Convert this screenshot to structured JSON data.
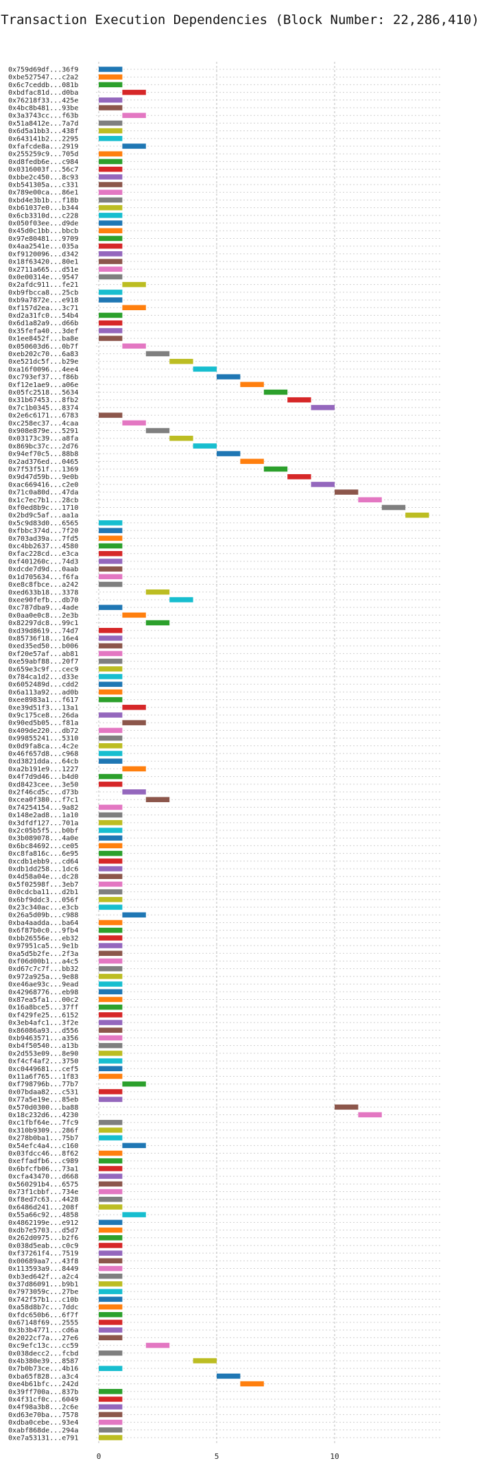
{
  "chart_data": {
    "type": "bar",
    "orientation": "horizontal-gantt",
    "title": "Transaction Execution Dependencies (Block Number: 22,286,410)",
    "xlabel": "",
    "ylabel": "",
    "xlim": [
      0,
      14.6
    ],
    "xticks": [
      0,
      5,
      10
    ],
    "grid": true,
    "colors": [
      "#1f77b4",
      "#ff7f0e",
      "#2ca02c",
      "#d62728",
      "#9467bd",
      "#8c564b",
      "#e377c2",
      "#7f7f7f",
      "#bcbd22",
      "#17becf"
    ],
    "tasks": [
      {
        "label": "0x759d69df...36f9",
        "start": 0,
        "end": 1
      },
      {
        "label": "0xbe527547...c2a2",
        "start": 0,
        "end": 1
      },
      {
        "label": "0x6c7ceddb...081b",
        "start": 0,
        "end": 1
      },
      {
        "label": "0xbdfac81d...d0ba",
        "start": 1,
        "end": 2
      },
      {
        "label": "0x76218f33...425e",
        "start": 0,
        "end": 1
      },
      {
        "label": "0x4bc8b481...93be",
        "start": 0,
        "end": 1
      },
      {
        "label": "0x3a3743cc...f63b",
        "start": 1,
        "end": 2
      },
      {
        "label": "0x51a8412e...7a7d",
        "start": 0,
        "end": 1
      },
      {
        "label": "0x6d5a1bb3...438f",
        "start": 0,
        "end": 1
      },
      {
        "label": "0x643141b2...2295",
        "start": 0,
        "end": 1
      },
      {
        "label": "0xfafcde8a...2919",
        "start": 1,
        "end": 2
      },
      {
        "label": "0x255259c9...705d",
        "start": 0,
        "end": 1
      },
      {
        "label": "0xd8fedb6e...c984",
        "start": 0,
        "end": 1
      },
      {
        "label": "0x0316003f...56c7",
        "start": 0,
        "end": 1
      },
      {
        "label": "0xbbe2c450...8c93",
        "start": 0,
        "end": 1
      },
      {
        "label": "0xb541305a...c331",
        "start": 0,
        "end": 1
      },
      {
        "label": "0x789e00ca...86e1",
        "start": 0,
        "end": 1
      },
      {
        "label": "0xbd4e3b1b...f18b",
        "start": 0,
        "end": 1
      },
      {
        "label": "0xb61037e0...b344",
        "start": 0,
        "end": 1
      },
      {
        "label": "0x6cb3310d...c228",
        "start": 0,
        "end": 1
      },
      {
        "label": "0x050f03ee...d9de",
        "start": 0,
        "end": 1
      },
      {
        "label": "0x45d0c1bb...bbcb",
        "start": 0,
        "end": 1
      },
      {
        "label": "0x97e80481...9709",
        "start": 0,
        "end": 1
      },
      {
        "label": "0x4aa2541e...035a",
        "start": 0,
        "end": 1
      },
      {
        "label": "0xf9120096...d342",
        "start": 0,
        "end": 1
      },
      {
        "label": "0x18f63420...80e1",
        "start": 0,
        "end": 1
      },
      {
        "label": "0x2711a665...d51e",
        "start": 0,
        "end": 1
      },
      {
        "label": "0x0e00314e...9547",
        "start": 0,
        "end": 1
      },
      {
        "label": "0x2afdc911...fe21",
        "start": 1,
        "end": 2
      },
      {
        "label": "0xb9fbcca8...25cb",
        "start": 0,
        "end": 1
      },
      {
        "label": "0xb9a7872e...e918",
        "start": 0,
        "end": 1
      },
      {
        "label": "0xf157d2ea...3c71",
        "start": 1,
        "end": 2
      },
      {
        "label": "0xd2a31fc0...54b4",
        "start": 0,
        "end": 1
      },
      {
        "label": "0x6d1a82a9...d66b",
        "start": 0,
        "end": 1
      },
      {
        "label": "0x35fefa40...3def",
        "start": 0,
        "end": 1
      },
      {
        "label": "0x1ee8452f...ba8e",
        "start": 0,
        "end": 1
      },
      {
        "label": "0x050603d6...0b7f",
        "start": 1,
        "end": 2
      },
      {
        "label": "0xeb202c70...6a83",
        "start": 2,
        "end": 3
      },
      {
        "label": "0xe521dc5f...b29e",
        "start": 3,
        "end": 4
      },
      {
        "label": "0xa16f0096...4ee4",
        "start": 4,
        "end": 5
      },
      {
        "label": "0xc793ef37...f86b",
        "start": 5,
        "end": 6
      },
      {
        "label": "0xf12e1ae9...a06e",
        "start": 6,
        "end": 7
      },
      {
        "label": "0x05fc2518...5634",
        "start": 7,
        "end": 8
      },
      {
        "label": "0x31b67453...8fb2",
        "start": 8,
        "end": 9
      },
      {
        "label": "0x7c1b0345...8374",
        "start": 9,
        "end": 10
      },
      {
        "label": "0x2e6c6171...6783",
        "start": 0,
        "end": 1
      },
      {
        "label": "0xc258ec37...4caa",
        "start": 1,
        "end": 2
      },
      {
        "label": "0x908e879e...5291",
        "start": 2,
        "end": 3
      },
      {
        "label": "0x03173c39...a8fa",
        "start": 3,
        "end": 4
      },
      {
        "label": "0x869bc37c...2d76",
        "start": 4,
        "end": 5
      },
      {
        "label": "0x94ef70c5...88b8",
        "start": 5,
        "end": 6
      },
      {
        "label": "0x2ad376ed...0465",
        "start": 6,
        "end": 7
      },
      {
        "label": "0x7f53f51f...1369",
        "start": 7,
        "end": 8
      },
      {
        "label": "0x9d47d59b...9e0b",
        "start": 8,
        "end": 9
      },
      {
        "label": "0xac669416...c2e0",
        "start": 9,
        "end": 10
      },
      {
        "label": "0x71c0a80d...47da",
        "start": 10,
        "end": 11
      },
      {
        "label": "0x1c7ec7b1...28cb",
        "start": 11,
        "end": 12
      },
      {
        "label": "0xf0ed8b9c...1710",
        "start": 12,
        "end": 13
      },
      {
        "label": "0x2bd9c5af...aa1a",
        "start": 13,
        "end": 14
      },
      {
        "label": "0x5c9d83d0...6565",
        "start": 0,
        "end": 1
      },
      {
        "label": "0xfbbc374d...7f20",
        "start": 0,
        "end": 1
      },
      {
        "label": "0x703ad39a...7fd5",
        "start": 0,
        "end": 1
      },
      {
        "label": "0xc4bb2637...4580",
        "start": 0,
        "end": 1
      },
      {
        "label": "0xfac228cd...e3ca",
        "start": 0,
        "end": 1
      },
      {
        "label": "0xf401260c...74d3",
        "start": 0,
        "end": 1
      },
      {
        "label": "0xdcde7d9d...0aab",
        "start": 0,
        "end": 1
      },
      {
        "label": "0x1d705634...f6fa",
        "start": 0,
        "end": 1
      },
      {
        "label": "0xe8c8fbce...a242",
        "start": 0,
        "end": 1
      },
      {
        "label": "0xed633b18...3378",
        "start": 2,
        "end": 3
      },
      {
        "label": "0xee90fefb...db70",
        "start": 3,
        "end": 4
      },
      {
        "label": "0xc787dba9...4ade",
        "start": 0,
        "end": 1
      },
      {
        "label": "0x0aa0e0c8...2e3b",
        "start": 1,
        "end": 2
      },
      {
        "label": "0x82297dc8...99c1",
        "start": 2,
        "end": 3
      },
      {
        "label": "0xd39d8619...74d7",
        "start": 0,
        "end": 1
      },
      {
        "label": "0x85736f18...16e4",
        "start": 0,
        "end": 1
      },
      {
        "label": "0xed35ed50...b006",
        "start": 0,
        "end": 1
      },
      {
        "label": "0xf20e57af...ab81",
        "start": 0,
        "end": 1
      },
      {
        "label": "0xe59abf88...20f7",
        "start": 0,
        "end": 1
      },
      {
        "label": "0x659e3c9f...cec9",
        "start": 0,
        "end": 1
      },
      {
        "label": "0x784ca1d2...d33e",
        "start": 0,
        "end": 1
      },
      {
        "label": "0x6052489d...cdd2",
        "start": 0,
        "end": 1
      },
      {
        "label": "0x6a113a92...ad0b",
        "start": 0,
        "end": 1
      },
      {
        "label": "0xee8983a1...f617",
        "start": 0,
        "end": 1
      },
      {
        "label": "0xe39d51f3...13a1",
        "start": 1,
        "end": 2
      },
      {
        "label": "0x9c175ce8...26da",
        "start": 0,
        "end": 1
      },
      {
        "label": "0x90ed5b05...f81a",
        "start": 1,
        "end": 2
      },
      {
        "label": "0x409de220...db72",
        "start": 0,
        "end": 1
      },
      {
        "label": "0x99855241...5310",
        "start": 0,
        "end": 1
      },
      {
        "label": "0x0d9fa8ca...4c2e",
        "start": 0,
        "end": 1
      },
      {
        "label": "0x46f657d8...c968",
        "start": 0,
        "end": 1
      },
      {
        "label": "0xd3821dda...64cb",
        "start": 0,
        "end": 1
      },
      {
        "label": "0xa2b191e9...1227",
        "start": 1,
        "end": 2
      },
      {
        "label": "0x4f7d9d46...b4d0",
        "start": 0,
        "end": 1
      },
      {
        "label": "0xd8423cee...3e50",
        "start": 0,
        "end": 1
      },
      {
        "label": "0x2f46cd5c...d73b",
        "start": 1,
        "end": 2
      },
      {
        "label": "0xcea0f380...f7c1",
        "start": 2,
        "end": 3
      },
      {
        "label": "0x74254154...9a82",
        "start": 0,
        "end": 1
      },
      {
        "label": "0x148e2ad8...1a10",
        "start": 0,
        "end": 1
      },
      {
        "label": "0x3dfdf127...701a",
        "start": 0,
        "end": 1
      },
      {
        "label": "0x2c05b5f5...b0bf",
        "start": 0,
        "end": 1
      },
      {
        "label": "0x3b089078...4a0e",
        "start": 0,
        "end": 1
      },
      {
        "label": "0x6bc84692...ce05",
        "start": 0,
        "end": 1
      },
      {
        "label": "0xc8fa816c...6e95",
        "start": 0,
        "end": 1
      },
      {
        "label": "0xcdb1ebb9...cd64",
        "start": 0,
        "end": 1
      },
      {
        "label": "0xdb1dd258...1dc6",
        "start": 0,
        "end": 1
      },
      {
        "label": "0x4d58a04e...dc28",
        "start": 0,
        "end": 1
      },
      {
        "label": "0x5f02598f...3eb7",
        "start": 0,
        "end": 1
      },
      {
        "label": "0x0cdcba11...d2b1",
        "start": 0,
        "end": 1
      },
      {
        "label": "0x6bf9ddc3...056f",
        "start": 0,
        "end": 1
      },
      {
        "label": "0x23c340ac...e3cb",
        "start": 0,
        "end": 1
      },
      {
        "label": "0x26a5d09b...c988",
        "start": 1,
        "end": 2
      },
      {
        "label": "0xba4aadda...ba64",
        "start": 0,
        "end": 1
      },
      {
        "label": "0x6f87b0c0...9fb4",
        "start": 0,
        "end": 1
      },
      {
        "label": "0xbb26556e...eb32",
        "start": 0,
        "end": 1
      },
      {
        "label": "0x97951ca5...9e1b",
        "start": 0,
        "end": 1
      },
      {
        "label": "0xa5d5b2fe...2f3a",
        "start": 0,
        "end": 1
      },
      {
        "label": "0xf06d00b1...a4c5",
        "start": 0,
        "end": 1
      },
      {
        "label": "0xd67c7c7f...bb32",
        "start": 0,
        "end": 1
      },
      {
        "label": "0x972a925a...9e88",
        "start": 0,
        "end": 1
      },
      {
        "label": "0xe46ae93c...9ead",
        "start": 0,
        "end": 1
      },
      {
        "label": "0x42968776...eb98",
        "start": 0,
        "end": 1
      },
      {
        "label": "0x87ea5fa1...00c2",
        "start": 0,
        "end": 1
      },
      {
        "label": "0x16a8bce5...37ff",
        "start": 0,
        "end": 1
      },
      {
        "label": "0xf429fe25...6152",
        "start": 0,
        "end": 1
      },
      {
        "label": "0x3eb4afc1...3f2e",
        "start": 0,
        "end": 1
      },
      {
        "label": "0x86086a93...d556",
        "start": 0,
        "end": 1
      },
      {
        "label": "0xb9463571...a356",
        "start": 0,
        "end": 1
      },
      {
        "label": "0xb4f50540...a13b",
        "start": 0,
        "end": 1
      },
      {
        "label": "0x2d553e09...8e90",
        "start": 0,
        "end": 1
      },
      {
        "label": "0xf4cf4af2...3750",
        "start": 0,
        "end": 1
      },
      {
        "label": "0xc0449681...cef5",
        "start": 0,
        "end": 1
      },
      {
        "label": "0x11a6f765...1f83",
        "start": 0,
        "end": 1
      },
      {
        "label": "0xf798796b...77b7",
        "start": 1,
        "end": 2
      },
      {
        "label": "0x07bdaa82...c531",
        "start": 0,
        "end": 1
      },
      {
        "label": "0x77a5e19e...85eb",
        "start": 0,
        "end": 1
      },
      {
        "label": "0x570d0300...ba88",
        "start": 10,
        "end": 11
      },
      {
        "label": "0x18c232d6...4230",
        "start": 11,
        "end": 12
      },
      {
        "label": "0xc1fbf64e...7fc9",
        "start": 0,
        "end": 1
      },
      {
        "label": "0x310b9309...286f",
        "start": 0,
        "end": 1
      },
      {
        "label": "0x278b0ba1...75b7",
        "start": 0,
        "end": 1
      },
      {
        "label": "0x54efc4a4...c160",
        "start": 1,
        "end": 2
      },
      {
        "label": "0x03fdcc46...8f62",
        "start": 0,
        "end": 1
      },
      {
        "label": "0xeffadfb6...c989",
        "start": 0,
        "end": 1
      },
      {
        "label": "0x6bfcfb06...73a1",
        "start": 0,
        "end": 1
      },
      {
        "label": "0xcfa43470...d668",
        "start": 0,
        "end": 1
      },
      {
        "label": "0x560291b4...6575",
        "start": 0,
        "end": 1
      },
      {
        "label": "0x73f1cbbf...734e",
        "start": 0,
        "end": 1
      },
      {
        "label": "0xf8ed7c63...4428",
        "start": 0,
        "end": 1
      },
      {
        "label": "0x6486d241...208f",
        "start": 0,
        "end": 1
      },
      {
        "label": "0x55a66c92...4858",
        "start": 1,
        "end": 2
      },
      {
        "label": "0x4862199e...e912",
        "start": 0,
        "end": 1
      },
      {
        "label": "0xdb7e5703...d5d7",
        "start": 0,
        "end": 1
      },
      {
        "label": "0x262d0975...b2f6",
        "start": 0,
        "end": 1
      },
      {
        "label": "0x038d5eab...c0c9",
        "start": 0,
        "end": 1
      },
      {
        "label": "0xf37261f4...7519",
        "start": 0,
        "end": 1
      },
      {
        "label": "0x00689aa7...43f8",
        "start": 0,
        "end": 1
      },
      {
        "label": "0x113593a9...8449",
        "start": 0,
        "end": 1
      },
      {
        "label": "0xb3ed642f...a2c4",
        "start": 0,
        "end": 1
      },
      {
        "label": "0x37d86091...b9b1",
        "start": 0,
        "end": 1
      },
      {
        "label": "0x7973059c...27be",
        "start": 0,
        "end": 1
      },
      {
        "label": "0x742f57b1...c10b",
        "start": 0,
        "end": 1
      },
      {
        "label": "0xa58d8b7c...7ddc",
        "start": 0,
        "end": 1
      },
      {
        "label": "0xfdc650b6...6f7f",
        "start": 0,
        "end": 1
      },
      {
        "label": "0x67148f69...2555",
        "start": 0,
        "end": 1
      },
      {
        "label": "0x3b3b4771...cd6a",
        "start": 0,
        "end": 1
      },
      {
        "label": "0x2022cf7a...27e6",
        "start": 0,
        "end": 1
      },
      {
        "label": "0xc9efc13c...cc59",
        "start": 2,
        "end": 3
      },
      {
        "label": "0x038decc2...fcbd",
        "start": 0,
        "end": 1
      },
      {
        "label": "0x4b380e39...8587",
        "start": 4,
        "end": 5
      },
      {
        "label": "0x7b0b73ce...4b16",
        "start": 0,
        "end": 1
      },
      {
        "label": "0xba65f828...a3c4",
        "start": 5,
        "end": 6
      },
      {
        "label": "0xe4b61bfc...242d",
        "start": 6,
        "end": 7
      },
      {
        "label": "0x39ff700a...837b",
        "start": 0,
        "end": 1
      },
      {
        "label": "0x4f31cf0c...6049",
        "start": 0,
        "end": 1
      },
      {
        "label": "0x4f98a3b8...2c6e",
        "start": 0,
        "end": 1
      },
      {
        "label": "0xd63e70ba...7578",
        "start": 0,
        "end": 1
      },
      {
        "label": "0xdba0cebe...93e4",
        "start": 0,
        "end": 1
      },
      {
        "label": "0xabf868de...294a",
        "start": 0,
        "end": 1
      },
      {
        "label": "0xe7a53131...e791",
        "start": 0,
        "end": 1
      }
    ]
  }
}
